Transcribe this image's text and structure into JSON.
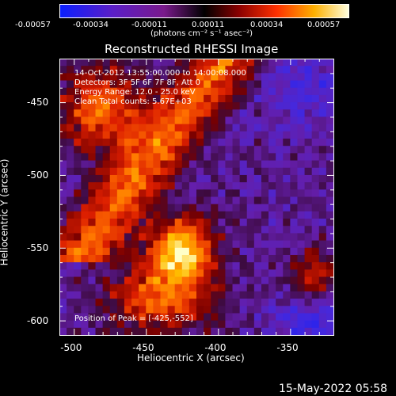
{
  "chart_data": {
    "type": "heatmap",
    "title": "Reconstructed RHESSI Image",
    "xlabel": "Heliocentric X (arcsec)",
    "ylabel": "Heliocentric Y (arcsec)",
    "xlim": [
      -510,
      -320
    ],
    "ylim": [
      -610,
      -420
    ],
    "x_ticks": [
      "-500",
      "-450",
      "-400",
      "-350"
    ],
    "x_tick_values": [
      -500,
      -450,
      -400,
      -350
    ],
    "y_ticks": [
      "-450",
      "-500",
      "-550",
      "-600"
    ],
    "y_tick_values": [
      -450,
      -500,
      -550,
      -600
    ],
    "colorbar": {
      "label": "(photons cm⁻² s⁻¹ asec⁻²)",
      "ticks": [
        "-0.00057",
        "-0.00034",
        "-0.00011",
        "0.00011",
        "0.00034",
        "0.00057"
      ],
      "range": [
        -0.00057,
        0.00057
      ]
    },
    "annotations": {
      "time_range": "14-Oct-2012 13:55:00.000 to 14:00:08.000",
      "detectors": "Detectors: 3F 5F 6F 7F 8F, Att 0",
      "energy_range": "Energy Range: 12.0 - 25.0 keV",
      "clean": "Clean     Total counts: 5.67E+03",
      "peak": "Position of Peak = [-425,-552]"
    },
    "peak_position": [
      -425,
      -552
    ],
    "total_counts": 5670
  },
  "footer": {
    "date": "15-May-2022 05:58"
  }
}
